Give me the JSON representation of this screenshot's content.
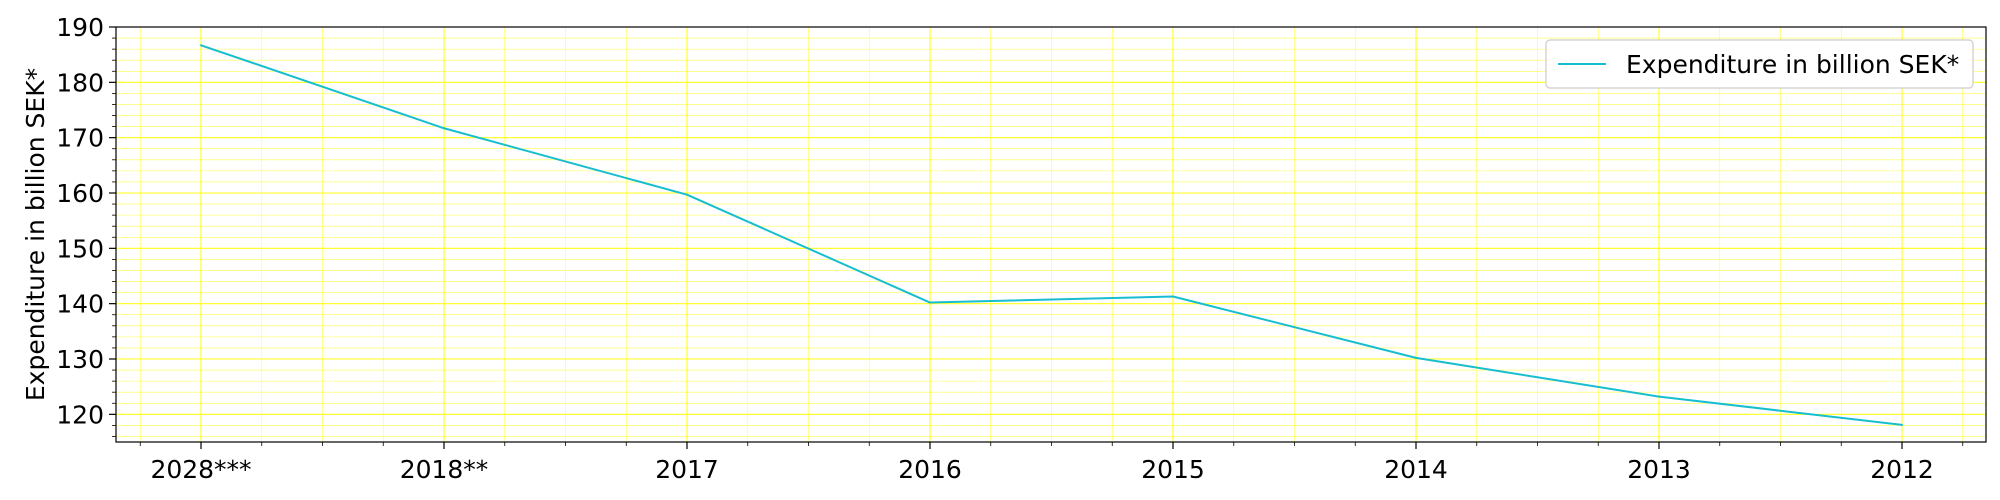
{
  "chart_data": {
    "type": "line",
    "categories": [
      "2028***",
      "2018**",
      "2017",
      "2016",
      "2015",
      "2014",
      "2013",
      "2012"
    ],
    "series": [
      {
        "name": "Expenditure in billion SEK*",
        "values": [
          186.7,
          171.7,
          159.7,
          140.2,
          141.3,
          130.2,
          123.2,
          118.1
        ],
        "color": "#17becf"
      }
    ],
    "xlabel": "",
    "ylabel": "Expenditure in billion SEK*",
    "ylim": [
      115,
      190
    ],
    "yticks": [
      120,
      130,
      140,
      150,
      160,
      170,
      180,
      190
    ],
    "grid": true,
    "grid_color": "#ffff00",
    "legend_position": "top-right"
  }
}
